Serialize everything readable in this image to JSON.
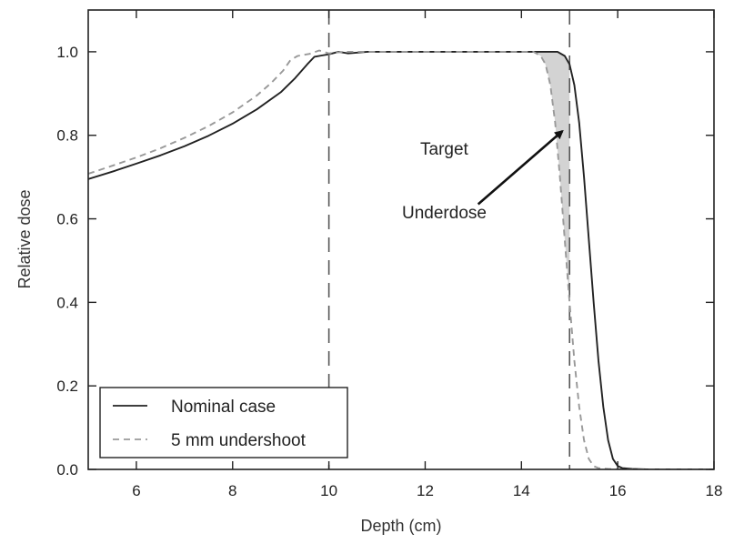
{
  "chart_data": {
    "type": "line",
    "xlabel": "Depth (cm)",
    "ylabel": "Relative dose",
    "xlim": [
      5,
      18
    ],
    "ylim": [
      0,
      1.1
    ],
    "x_ticks": [
      6,
      8,
      10,
      12,
      14,
      16,
      18
    ],
    "y_ticks": [
      0.0,
      0.2,
      0.4,
      0.6,
      0.8,
      1.0
    ],
    "x_tick_labels": [
      "6",
      "8",
      "10",
      "12",
      "14",
      "16",
      "18"
    ],
    "y_tick_labels": [
      "0.0",
      "0.2",
      "0.4",
      "0.6",
      "0.8",
      "1.0"
    ],
    "grid": false,
    "legend_position": "bottom-left",
    "series": [
      {
        "name": "Nominal case",
        "style": "solid",
        "color": "#222222",
        "x": [
          5.0,
          5.5,
          6.0,
          6.5,
          7.0,
          7.5,
          8.0,
          8.5,
          9.0,
          9.3,
          9.55,
          9.7,
          9.85,
          10.0,
          10.2,
          10.4,
          10.8,
          11.5,
          12.5,
          13.5,
          14.0,
          14.5,
          14.75,
          14.9,
          15.0,
          15.1,
          15.2,
          15.3,
          15.4,
          15.5,
          15.6,
          15.7,
          15.8,
          15.9,
          16.0,
          16.1,
          16.3,
          16.6,
          17.0,
          18.0
        ],
        "y": [
          0.695,
          0.713,
          0.732,
          0.752,
          0.774,
          0.799,
          0.828,
          0.862,
          0.903,
          0.937,
          0.97,
          0.988,
          0.991,
          0.994,
          1.0,
          0.996,
          1.0,
          1.0,
          1.0,
          1.0,
          1.0,
          1.0,
          1.0,
          0.99,
          0.97,
          0.92,
          0.83,
          0.7,
          0.55,
          0.4,
          0.26,
          0.15,
          0.07,
          0.025,
          0.008,
          0.003,
          0.001,
          0.0,
          0.0,
          0.0
        ]
      },
      {
        "name": "5 mm undershoot",
        "style": "dashed",
        "color": "#999999",
        "x": [
          5.0,
          5.5,
          6.0,
          6.5,
          7.0,
          7.5,
          8.0,
          8.5,
          8.8,
          9.05,
          9.2,
          9.35,
          9.6,
          9.8,
          10.0,
          10.3,
          11.0,
          12.0,
          13.0,
          14.0,
          14.25,
          14.4,
          14.5,
          14.6,
          14.7,
          14.8,
          14.9,
          15.0,
          15.1,
          15.2,
          15.3,
          15.4,
          15.5,
          15.6,
          15.8,
          16.1,
          16.5,
          18.0
        ],
        "y": [
          0.708,
          0.727,
          0.747,
          0.769,
          0.794,
          0.822,
          0.855,
          0.895,
          0.925,
          0.955,
          0.98,
          0.99,
          0.995,
          1.003,
          0.996,
          1.0,
          1.0,
          1.0,
          1.0,
          1.0,
          1.0,
          0.99,
          0.97,
          0.92,
          0.83,
          0.7,
          0.55,
          0.4,
          0.26,
          0.15,
          0.07,
          0.025,
          0.008,
          0.003,
          0.001,
          0.0,
          0.0,
          0.0
        ]
      }
    ],
    "vertical_lines": [
      {
        "x": 10,
        "style": "dashed"
      },
      {
        "x": 15,
        "style": "dashed"
      }
    ],
    "annotations": [
      {
        "text": "Target",
        "x": 12.5,
        "y": 0.76
      },
      {
        "text": "Underdose",
        "x": 12.3,
        "y": 0.6
      }
    ],
    "arrow": {
      "from": [
        13.1,
        0.635
      ],
      "to": [
        14.85,
        0.81
      ]
    },
    "shaded_region": {
      "description_of": "between nominal and undershoot curves",
      "x_range": [
        14.25,
        15.0
      ],
      "color": "#d3d3d3"
    }
  }
}
